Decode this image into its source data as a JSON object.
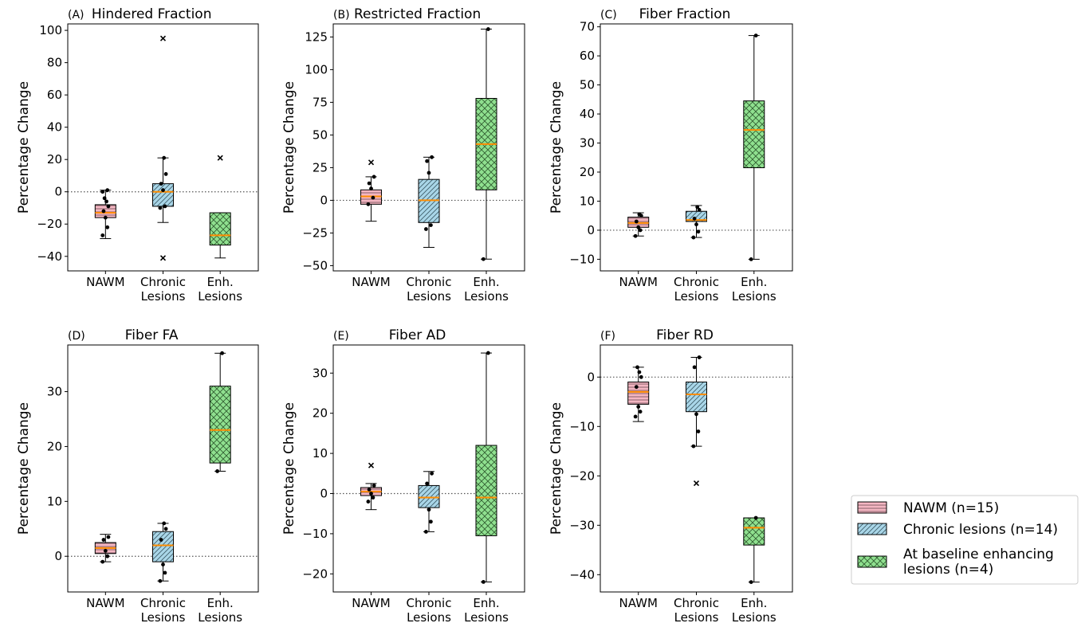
{
  "colors": {
    "nawm": "#f4b6c2",
    "chronic": "#a9d6e8",
    "enhancing": "#8fe08f",
    "median": "#ff8c00",
    "zero_line": "#555555"
  },
  "legend": {
    "position": "bottom-right",
    "entries": [
      {
        "id": "nawm",
        "label": "NAWM (n=15)",
        "hatch": "horizontal"
      },
      {
        "id": "chronic",
        "label": "Chronic lesions (n=14)",
        "hatch": "diagonal"
      },
      {
        "id": "enhancing",
        "label": "At baseline enhancing lesions (n=4)",
        "label_lines": [
          "At baseline enhancing",
          "lesions (n=4)"
        ],
        "hatch": "crosshatch"
      }
    ]
  },
  "chart_data": [
    {
      "type": "box",
      "letter": "(A)",
      "title": "Hindered Fraction",
      "ylabel": "Percentage Change",
      "ylim": [
        -49,
        104
      ],
      "yticks": [
        -40,
        -20,
        0,
        20,
        40,
        60,
        80,
        100
      ],
      "categories": [
        "NAWM",
        "Chronic Lesions",
        "Enh. Lesions"
      ],
      "category_lines": [
        [
          "NAWM"
        ],
        [
          "Chronic",
          "Lesions"
        ],
        [
          "Enh.",
          "Lesions"
        ]
      ],
      "boxes": [
        {
          "whislo": -29,
          "q1": -16,
          "med": -13,
          "q3": -8,
          "whishi": 1,
          "fliers": [],
          "points": [
            -27,
            -22,
            -16,
            -12,
            -9,
            -6,
            -4,
            0,
            1
          ]
        },
        {
          "whislo": -19,
          "q1": -9,
          "med": 0,
          "q3": 5,
          "whishi": 21,
          "fliers": [
            95,
            -41
          ],
          "points": [
            -10,
            -9,
            1,
            5,
            11,
            21
          ]
        },
        {
          "whislo": -41,
          "q1": -33,
          "med": -27,
          "q3": -13,
          "whishi": -13,
          "fliers": [
            21
          ],
          "points": []
        }
      ]
    },
    {
      "type": "box",
      "letter": "(B)",
      "title": "Restricted Fraction",
      "ylabel": "Percentage Change",
      "ylim": [
        -54,
        135
      ],
      "yticks": [
        -50,
        -25,
        0,
        25,
        50,
        75,
        100,
        125
      ],
      "categories": [
        "NAWM",
        "Chronic Lesions",
        "Enh. Lesions"
      ],
      "category_lines": [
        [
          "NAWM"
        ],
        [
          "Chronic",
          "Lesions"
        ],
        [
          "Enh.",
          "Lesions"
        ]
      ],
      "boxes": [
        {
          "whislo": -16,
          "q1": -3,
          "med": 3,
          "q3": 8,
          "whishi": 18,
          "fliers": [
            29
          ],
          "points": [
            -3,
            2,
            9,
            13,
            18
          ]
        },
        {
          "whislo": -36,
          "q1": -17,
          "med": 0,
          "q3": 16,
          "whishi": 33,
          "fliers": [],
          "points": [
            -22,
            -19,
            21,
            30,
            33
          ]
        },
        {
          "whislo": -45,
          "q1": 8,
          "med": 43,
          "q3": 78,
          "whishi": 131,
          "fliers": [],
          "points": [
            -45,
            131
          ]
        }
      ]
    },
    {
      "type": "box",
      "letter": "(C)",
      "title": "Fiber Fraction",
      "ylabel": "Percentage Change",
      "ylim": [
        -14,
        71
      ],
      "yticks": [
        -10,
        0,
        10,
        20,
        30,
        40,
        50,
        60,
        70
      ],
      "categories": [
        "NAWM",
        "Chronic Lesions",
        "Enh. Lesions"
      ],
      "category_lines": [
        [
          "NAWM"
        ],
        [
          "Chronic",
          "Lesions"
        ],
        [
          "Enh.",
          "Lesions"
        ]
      ],
      "boxes": [
        {
          "whislo": -2,
          "q1": 1,
          "med": 2.5,
          "q3": 4.5,
          "whishi": 6,
          "fliers": [],
          "points": [
            -2,
            0,
            1,
            3,
            5,
            5.5
          ]
        },
        {
          "whislo": -2.5,
          "q1": 3,
          "med": 3.5,
          "q3": 6.5,
          "whishi": 8.5,
          "fliers": [],
          "points": [
            -2.5,
            -0.5,
            2,
            4,
            7,
            8
          ]
        },
        {
          "whislo": -10,
          "q1": 21.5,
          "med": 34.5,
          "q3": 44.5,
          "whishi": 67,
          "fliers": [],
          "points": [
            -10,
            67
          ]
        }
      ]
    },
    {
      "type": "box",
      "letter": "(D)",
      "title": "Fiber FA",
      "ylabel": "Percentage Change",
      "ylim": [
        -6.5,
        38.5
      ],
      "yticks": [
        0,
        10,
        20,
        30
      ],
      "categories": [
        "NAWM",
        "Chronic Lesions",
        "Enh. Lesions"
      ],
      "category_lines": [
        [
          "NAWM"
        ],
        [
          "Chronic",
          "Lesions"
        ],
        [
          "Enh.",
          "Lesions"
        ]
      ],
      "boxes": [
        {
          "whislo": -1,
          "q1": 0.5,
          "med": 1.5,
          "q3": 2.5,
          "whishi": 4,
          "fliers": [],
          "points": [
            -1,
            0,
            1,
            3,
            3.5
          ]
        },
        {
          "whislo": -4.5,
          "q1": -1,
          "med": 2,
          "q3": 4.5,
          "whishi": 6,
          "fliers": [],
          "points": [
            -4.5,
            -3,
            -1.5,
            3,
            5,
            6
          ]
        },
        {
          "whislo": 15.5,
          "q1": 17,
          "med": 23,
          "q3": 31,
          "whishi": 37,
          "fliers": [],
          "points": [
            15.5,
            37
          ]
        }
      ]
    },
    {
      "type": "box",
      "letter": "(E)",
      "title": "Fiber AD",
      "ylabel": "Percentage Change",
      "ylim": [
        -24.5,
        37
      ],
      "yticks": [
        -20,
        -10,
        0,
        10,
        20,
        30
      ],
      "categories": [
        "NAWM",
        "Chronic Lesions",
        "Enh. Lesions"
      ],
      "category_lines": [
        [
          "NAWM"
        ],
        [
          "Chronic",
          "Lesions"
        ],
        [
          "Enh.",
          "Lesions"
        ]
      ],
      "boxes": [
        {
          "whislo": -4,
          "q1": -0.5,
          "med": 0.5,
          "q3": 1.5,
          "whishi": 2.5,
          "fliers": [
            7
          ],
          "points": [
            -2,
            -1,
            0,
            1,
            2
          ]
        },
        {
          "whislo": -9.5,
          "q1": -3.5,
          "med": -1,
          "q3": 2,
          "whishi": 5.5,
          "fliers": [],
          "points": [
            -9.5,
            -7,
            -4,
            2.5,
            5
          ]
        },
        {
          "whislo": -22,
          "q1": -10.5,
          "med": -1,
          "q3": 12,
          "whishi": 35,
          "fliers": [],
          "points": [
            -22,
            35
          ]
        }
      ]
    },
    {
      "type": "box",
      "letter": "(F)",
      "title": "Fiber RD",
      "ylabel": "Percentage Change",
      "ylim": [
        -43.5,
        6.5
      ],
      "yticks": [
        -40,
        -30,
        -20,
        -10,
        0
      ],
      "categories": [
        "NAWM",
        "Chronic Lesions",
        "Enh. Lesions"
      ],
      "category_lines": [
        [
          "NAWM"
        ],
        [
          "Chronic",
          "Lesions"
        ],
        [
          "Enh.",
          "Lesions"
        ]
      ],
      "boxes": [
        {
          "whislo": -9,
          "q1": -5.5,
          "med": -3,
          "q3": -1,
          "whishi": 2,
          "fliers": [],
          "points": [
            -8,
            -7,
            -6,
            -2,
            0,
            1,
            2
          ]
        },
        {
          "whislo": -14,
          "q1": -7,
          "med": -3.5,
          "q3": -1,
          "whishi": 4,
          "fliers": [
            -21.5
          ],
          "points": [
            -14,
            -11,
            -7.5,
            2,
            4
          ]
        },
        {
          "whislo": -41.5,
          "q1": -34,
          "med": -30.5,
          "q3": -28.5,
          "whishi": -28.5,
          "fliers": [],
          "points": [
            -41.5,
            -28.5
          ]
        }
      ]
    }
  ]
}
